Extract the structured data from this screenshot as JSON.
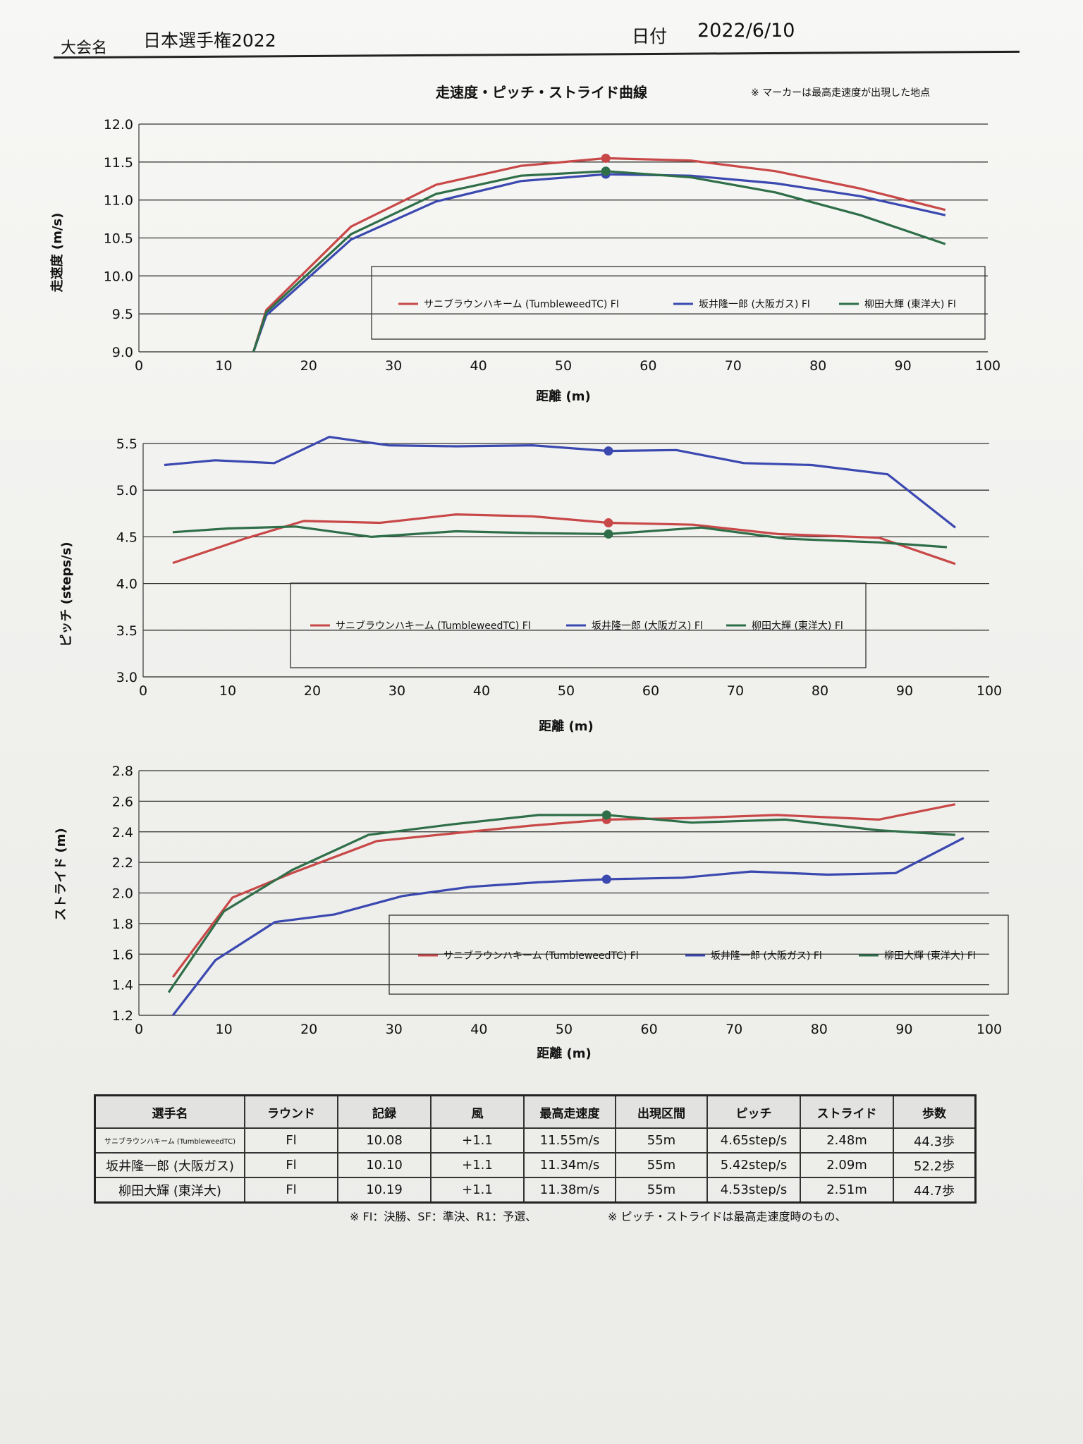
{
  "header": {
    "event_label": "大会名",
    "event_name": "日本選手権2022",
    "date_label": "日付",
    "date_value": "2022/6/10"
  },
  "title": "走速度・ピッチ・ストライド曲線",
  "marker_note": "※ マーカーは最高走速度が出現した地点",
  "chart_data": [
    {
      "type": "line",
      "ylabel": "走速度 (m/s)",
      "xlabel": "距離 (m)",
      "xlim": [
        0,
        100
      ],
      "ylim": [
        9.0,
        12.0
      ],
      "xticks": [
        "0",
        "10",
        "20",
        "30",
        "40",
        "50",
        "60",
        "70",
        "80",
        "90",
        "100"
      ],
      "yticks": [
        "9.0",
        "9.5",
        "10.0",
        "10.5",
        "11.0",
        "11.5",
        "12.0"
      ],
      "legend": "inside-bottom",
      "series": [
        {
          "name": "サニブラウンハキーム (TumbleweedTC) Fl",
          "color": "#c84848",
          "x": [
            13.5,
            15,
            25,
            35,
            45,
            55,
            65,
            75,
            85,
            95
          ],
          "y": [
            9.0,
            9.55,
            10.65,
            11.2,
            11.45,
            11.55,
            11.52,
            11.38,
            11.15,
            10.87
          ],
          "marker_x": 55,
          "marker_y": 11.55
        },
        {
          "name": "坂井隆一郎 (大阪ガス) Fl",
          "color": "#3a48b0",
          "x": [
            13.5,
            15,
            25,
            35,
            45,
            55,
            65,
            75,
            85,
            95
          ],
          "y": [
            9.0,
            9.48,
            10.48,
            10.98,
            11.25,
            11.34,
            11.32,
            11.22,
            11.05,
            10.8
          ],
          "marker_x": 55,
          "marker_y": 11.34
        },
        {
          "name": "柳田大輝 (東洋大) Fl",
          "color": "#2e6e48",
          "x": [
            13.5,
            15,
            25,
            35,
            45,
            55,
            65,
            75,
            85,
            95
          ],
          "y": [
            9.0,
            9.52,
            10.55,
            11.08,
            11.32,
            11.38,
            11.3,
            11.1,
            10.8,
            10.42
          ],
          "marker_x": 55,
          "marker_y": 11.38
        }
      ]
    },
    {
      "type": "line",
      "ylabel": "ピッチ (steps/s)",
      "xlabel": "距離 (m)",
      "xlim": [
        0,
        100
      ],
      "ylim": [
        3.0,
        5.5
      ],
      "xticks": [
        "0",
        "10",
        "20",
        "30",
        "40",
        "50",
        "60",
        "70",
        "80",
        "90",
        "100"
      ],
      "yticks": [
        "3.0",
        "3.5",
        "4.0",
        "4.5",
        "5.0",
        "5.5"
      ],
      "legend": "inside-bottom",
      "series": [
        {
          "name": "サニブラウンハキーム (TumbleweedTC) Fl",
          "color": "#c84848",
          "x": [
            3.5,
            12,
            19,
            28,
            37,
            46,
            55,
            65,
            75,
            87,
            96
          ],
          "y": [
            4.22,
            4.48,
            4.67,
            4.65,
            4.74,
            4.72,
            4.65,
            4.63,
            4.53,
            4.49,
            4.21
          ],
          "marker_x": 55,
          "marker_y": 4.65
        },
        {
          "name": "坂井隆一郎 (大阪ガス) Fl",
          "color": "#3a48b0",
          "x": [
            2.5,
            8.5,
            15.5,
            22,
            29,
            37,
            46,
            55,
            63,
            71,
            79,
            88,
            96
          ],
          "y": [
            5.27,
            5.32,
            5.29,
            5.57,
            5.48,
            5.47,
            5.48,
            5.42,
            5.43,
            5.29,
            5.27,
            5.17,
            4.6
          ],
          "marker_x": 55,
          "marker_y": 5.42
        },
        {
          "name": "柳田大輝 (東洋大) Fl",
          "color": "#2e6e48",
          "x": [
            3.5,
            10,
            18,
            27,
            37,
            46,
            55,
            66,
            76,
            87,
            95
          ],
          "y": [
            4.55,
            4.59,
            4.61,
            4.5,
            4.56,
            4.54,
            4.53,
            4.6,
            4.48,
            4.44,
            4.39
          ],
          "marker_x": 55,
          "marker_y": 4.53
        }
      ]
    },
    {
      "type": "line",
      "ylabel": "ストライド (m)",
      "xlabel": "距離 (m)",
      "xlim": [
        0,
        100
      ],
      "ylim": [
        1.2,
        2.8
      ],
      "xticks": [
        "0",
        "10",
        "20",
        "30",
        "40",
        "50",
        "60",
        "70",
        "80",
        "90",
        "100"
      ],
      "yticks": [
        "1.2",
        "1.4",
        "1.6",
        "1.8",
        "2.0",
        "2.2",
        "2.4",
        "2.6",
        "2.8"
      ],
      "legend": "inside-bottom",
      "series": [
        {
          "name": "サニブラウンハキーム (TumbleweedTC) Fl",
          "color": "#c84848",
          "x": [
            4,
            11,
            18,
            28,
            37,
            46,
            55,
            65,
            75,
            87,
            96
          ],
          "y": [
            1.45,
            1.97,
            2.13,
            2.34,
            2.39,
            2.44,
            2.48,
            2.49,
            2.51,
            2.48,
            2.58
          ],
          "marker_x": 55,
          "marker_y": 2.48
        },
        {
          "name": "坂井隆一郎 (大阪ガス) Fl",
          "color": "#3a48b0",
          "x": [
            4,
            9,
            16,
            23,
            31,
            39,
            47,
            55,
            64,
            72,
            81,
            89,
            97
          ],
          "y": [
            1.2,
            1.56,
            1.81,
            1.86,
            1.98,
            2.04,
            2.07,
            2.09,
            2.1,
            2.14,
            2.12,
            2.13,
            2.36
          ],
          "marker_x": 55,
          "marker_y": 2.09
        },
        {
          "name": "柳田大輝 (東洋大) Fl",
          "color": "#2e6e48",
          "x": [
            3.5,
            10,
            18,
            27,
            37,
            47,
            55,
            65,
            76,
            87,
            96
          ],
          "y": [
            1.35,
            1.88,
            2.15,
            2.38,
            2.45,
            2.51,
            2.51,
            2.46,
            2.48,
            2.41,
            2.38
          ],
          "marker_x": 55,
          "marker_y": 2.51
        }
      ]
    }
  ],
  "table": {
    "headers": [
      "選手名",
      "ラウンド",
      "記録",
      "風",
      "最高走速度",
      "出現区間",
      "ピッチ",
      "ストライド",
      "歩数"
    ],
    "rows": [
      [
        "サニブラウンハキーム (TumbleweedTC)",
        "Fl",
        "10.08",
        "+1.1",
        "11.55m/s",
        "55m",
        "4.65step/s",
        "2.48m",
        "44.3歩"
      ],
      [
        "坂井隆一郎 (大阪ガス)",
        "Fl",
        "10.10",
        "+1.1",
        "11.34m/s",
        "55m",
        "5.42step/s",
        "2.09m",
        "52.2歩"
      ],
      [
        "柳田大輝 (東洋大)",
        "Fl",
        "10.19",
        "+1.1",
        "11.38m/s",
        "55m",
        "4.53step/s",
        "2.51m",
        "44.7歩"
      ]
    ]
  },
  "footnotes": {
    "left": "※ FI：決勝、SF：準決、R1：予選、",
    "right": "※ ピッチ・ストライドは最高走速度時のもの、"
  }
}
